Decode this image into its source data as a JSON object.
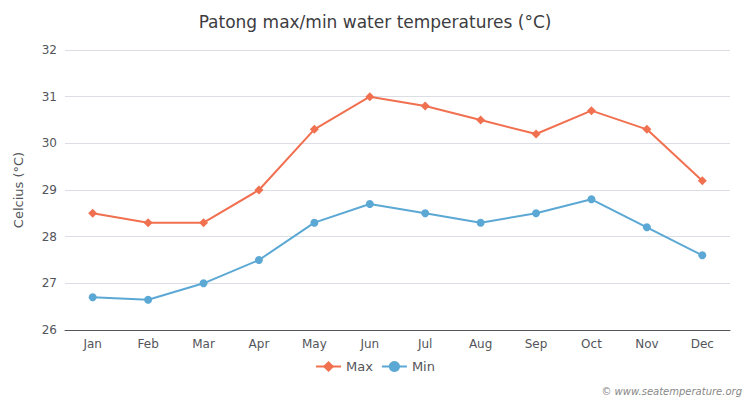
{
  "chart_data": {
    "type": "line",
    "title": "Patong max/min water temperatures (°C)",
    "ylabel": "Celcius (°C)",
    "categories": [
      "Jan",
      "Feb",
      "Mar",
      "Apr",
      "May",
      "Jun",
      "Jul",
      "Aug",
      "Sep",
      "Oct",
      "Nov",
      "Dec"
    ],
    "series": [
      {
        "name": "Max",
        "color": "#f07050",
        "marker": "diamond",
        "values": [
          28.5,
          28.3,
          28.3,
          29.0,
          30.3,
          31.0,
          30.8,
          30.5,
          30.2,
          30.7,
          30.3,
          29.2
        ]
      },
      {
        "name": "Min",
        "color": "#5ba8d4",
        "marker": "circle",
        "values": [
          26.7,
          26.65,
          27.0,
          27.5,
          28.3,
          28.7,
          28.5,
          28.3,
          28.5,
          28.8,
          28.2,
          27.6
        ]
      }
    ],
    "ylim": [
      26,
      32
    ],
    "yticks": [
      26,
      27,
      28,
      29,
      30,
      31,
      32
    ],
    "grid": true,
    "legend": "bottom",
    "annotations": [
      "© www.seatemperature.org"
    ]
  }
}
